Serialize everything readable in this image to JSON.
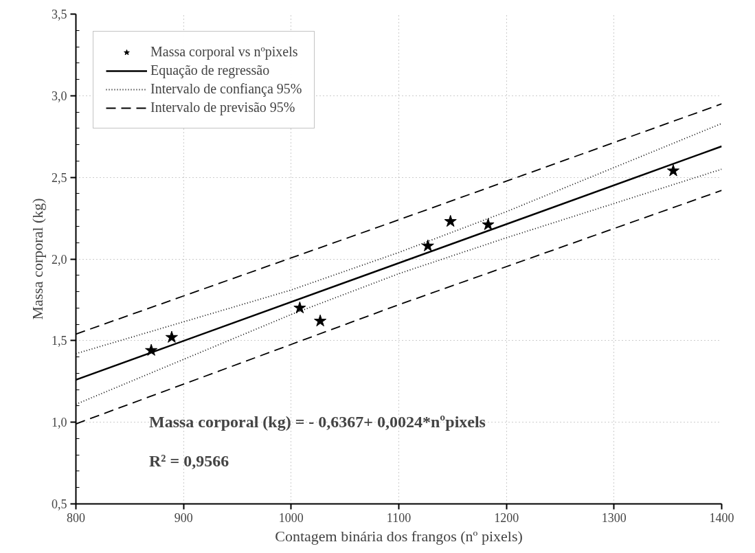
{
  "chart_data": {
    "type": "scatter",
    "xlabel": "Contagem binária dos frangos (nº pixels)",
    "ylabel": "Massa corporal (kg)",
    "xlim": [
      800,
      1400
    ],
    "ylim": [
      0.5,
      3.5
    ],
    "xticks": [
      800,
      900,
      1000,
      1100,
      1200,
      1300,
      1400
    ],
    "yticks": [
      {
        "value": 0.5,
        "label": "0,5"
      },
      {
        "value": 1.0,
        "label": "1,0"
      },
      {
        "value": 1.5,
        "label": "1,5"
      },
      {
        "value": 2.0,
        "label": "2,0"
      },
      {
        "value": 2.5,
        "label": "2,5"
      },
      {
        "value": 3.0,
        "label": "3,0"
      },
      {
        "value": 3.5,
        "label": "3,5"
      }
    ],
    "grid": true,
    "legend": "top left",
    "series": [
      {
        "name": "Massa corporal vs nºpixels",
        "marker": "star",
        "color": "#000000",
        "x": [
          870,
          889,
          1008,
          1027,
          1127,
          1148,
          1183,
          1355
        ],
        "values": [
          1.44,
          1.52,
          1.7,
          1.62,
          2.08,
          2.23,
          2.21,
          2.54
        ]
      },
      {
        "name": "Equação de regressão",
        "type": "line",
        "line_style": "solid",
        "color": "#000000",
        "x": [
          800,
          1400
        ],
        "values": [
          1.26,
          2.69
        ]
      },
      {
        "name": "Intervalo de confiança 95%",
        "type": "line",
        "line_style": "dotted",
        "color": "#000000",
        "x": [
          800,
          1000,
          1100,
          1200,
          1400
        ],
        "values": [
          1.42,
          1.81,
          2.04,
          2.29,
          2.83
        ]
      },
      {
        "type": "line",
        "line_style": "dotted",
        "color": "#000000",
        "x": [
          800,
          1000,
          1100,
          1200,
          1400
        ],
        "values": [
          1.11,
          1.66,
          1.91,
          2.13,
          2.55
        ]
      },
      {
        "name": "Intervalo de previsão 95%",
        "type": "line",
        "line_style": "dashed",
        "color": "#000000",
        "x": [
          800,
          1100,
          1400
        ],
        "values": [
          1.54,
          2.24,
          2.95
        ]
      },
      {
        "type": "line",
        "line_style": "dashed",
        "color": "#000000",
        "x": [
          800,
          1100,
          1400
        ],
        "values": [
          0.99,
          1.72,
          2.42
        ]
      }
    ],
    "annotations": [
      "Massa corporal (kg) = - 0,6367+ 0,0024*nºpixels",
      "R² = 0,9566"
    ]
  }
}
